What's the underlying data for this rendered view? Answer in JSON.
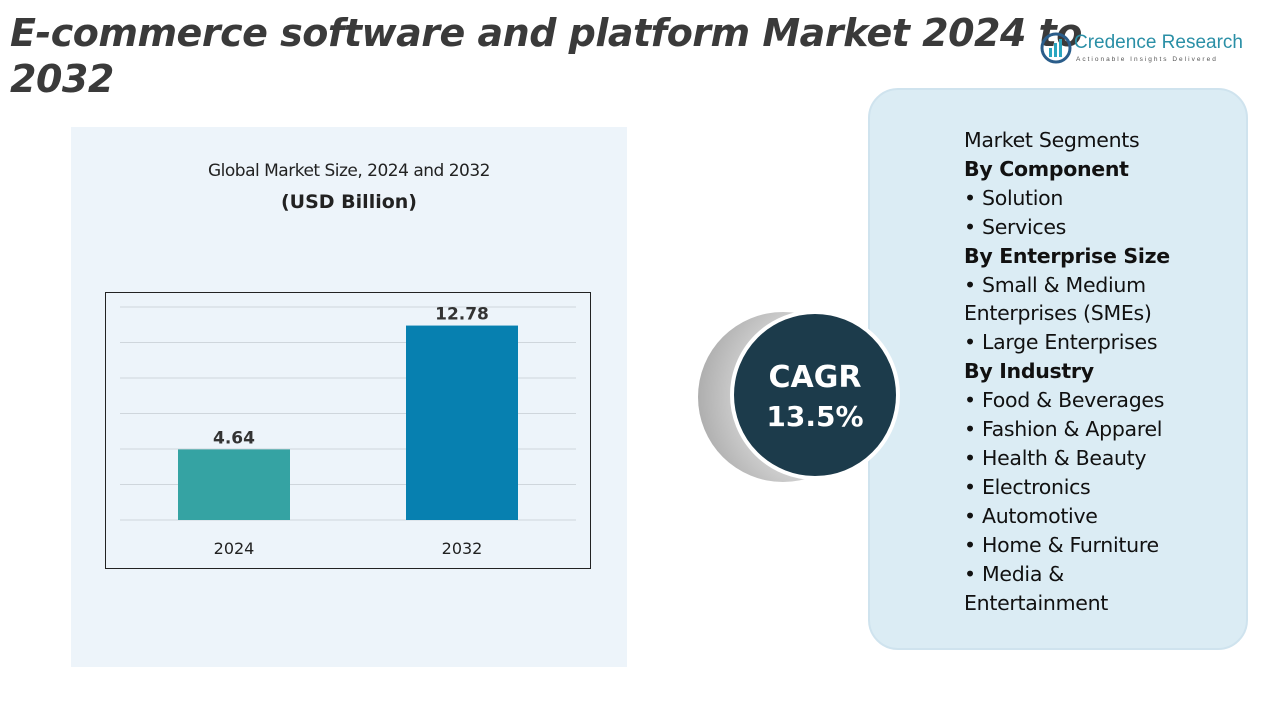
{
  "title": "E-commerce software and platform Market 2024 to 2032",
  "logo": {
    "name": "Credence Research",
    "tagline": "Actionable Insights Delivered"
  },
  "chart_data": {
    "type": "bar",
    "title": "Global Market Size, 2024 and 2032",
    "unit": "(USD Billion)",
    "categories": [
      "2024",
      "2032"
    ],
    "values": [
      4.64,
      12.78
    ],
    "value_labels": [
      "4.64",
      "12.78"
    ],
    "colors": [
      "#35a3a3",
      "#0780b0"
    ],
    "ylim": [
      0,
      14
    ],
    "grid": true,
    "xlabel": "",
    "ylabel": ""
  },
  "cagr": {
    "label": "CAGR",
    "value": "13.5%"
  },
  "segments": {
    "heading": "Market Segments",
    "groups": [
      {
        "title": "By Component",
        "items": [
          "• Solution",
          "• Services"
        ]
      },
      {
        "title": "By Enterprise Size",
        "items": [
          "• Small & Medium Enterprises (SMEs)",
          "• Large Enterprises"
        ]
      },
      {
        "title": "By Industry",
        "items": [
          "• Food & Beverages",
          "•  Fashion & Apparel",
          "• Health & Beauty",
          "•  Electronics",
          "• Automotive",
          "• Home & Furniture",
          "• Media & Entertainment"
        ]
      }
    ]
  }
}
